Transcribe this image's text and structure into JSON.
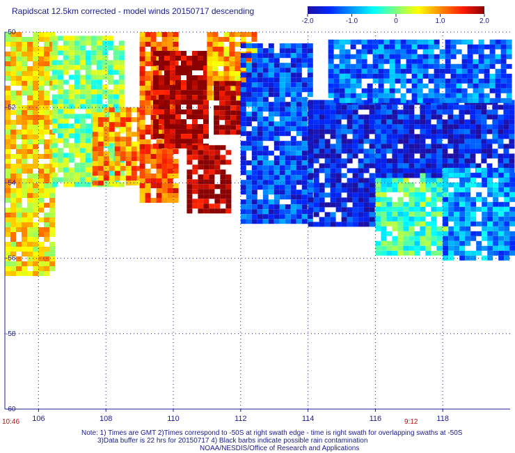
{
  "title": "Rapidscat 12.5km corrected - model winds 20150717 descending",
  "colorbar": {
    "ticks": [
      "-2.0",
      "-1.0",
      "0",
      "1.0",
      "2.0"
    ],
    "stops": [
      "#1e0fa0",
      "#0028ff",
      "#0096ff",
      "#00ffff",
      "#7dff7d",
      "#ffff00",
      "#ff8c00",
      "#ff1e00",
      "#8b0000"
    ],
    "range": [
      -2.0,
      2.0
    ]
  },
  "chart_data": {
    "type": "heatmap",
    "title": "Rapidscat 12.5km corrected - model winds 20150717 descending",
    "x_ticks": [
      106,
      108,
      110,
      112,
      114,
      116,
      118
    ],
    "y_ticks": [
      -50,
      -52,
      -54,
      -56,
      -58,
      -60
    ],
    "xlim": [
      105.0,
      120.0
    ],
    "ylim": [
      -60,
      -50
    ],
    "grid": true,
    "value_range": [
      -2.0,
      2.0
    ],
    "regions": [
      {
        "lon": [
          105.0,
          106.4
        ],
        "lat": [
          -56.4,
          -50.0
        ],
        "value": 0.6
      },
      {
        "lon": [
          106.4,
          108.4
        ],
        "lat": [
          -54.0,
          -50.1
        ],
        "value": 0.0
      },
      {
        "lon": [
          107.6,
          109.0
        ],
        "lat": [
          -54.0,
          -52.0
        ],
        "value": 1.0
      },
      {
        "lon": [
          109.0,
          110.0
        ],
        "lat": [
          -54.5,
          -50.0
        ],
        "value": 1.2
      },
      {
        "lon": [
          109.4,
          111.0
        ],
        "lat": [
          -53.0,
          -50.5
        ],
        "value": 2.0
      },
      {
        "lon": [
          110.4,
          111.6
        ],
        "lat": [
          -54.8,
          -53.0
        ],
        "value": 2.0
      },
      {
        "lon": [
          111.0,
          112.4
        ],
        "lat": [
          -51.8,
          -50.0
        ],
        "value": 0.9
      },
      {
        "lon": [
          111.2,
          112.0
        ],
        "lat": [
          -52.6,
          -51.3
        ],
        "value": 2.0
      },
      {
        "lon": [
          112.0,
          114.0
        ],
        "lat": [
          -55.0,
          -50.3
        ],
        "value": -1.4
      },
      {
        "lon": [
          114.0,
          116.0
        ],
        "lat": [
          -55.1,
          -51.8
        ],
        "value": -1.6
      },
      {
        "lon": [
          116.0,
          118.0
        ],
        "lat": [
          -55.8,
          -53.6
        ],
        "value": -0.2
      },
      {
        "lon": [
          116.0,
          120.0
        ],
        "lat": [
          -53.8,
          -51.8
        ],
        "value": -1.6
      },
      {
        "lon": [
          118.0,
          120.0
        ],
        "lat": [
          -56.0,
          -53.6
        ],
        "value": -1.0
      },
      {
        "lon": [
          114.6,
          120.0
        ],
        "lat": [
          -51.8,
          -50.2
        ],
        "value": -1.2
      }
    ]
  },
  "time_labels": {
    "left": "10:46",
    "right": "9:12"
  },
  "notes": [
    "Note: 1) Times are GMT 2)Times correspond to -50S at right swath edge - time is right swath for overlapping swaths at -50S",
    "3)Data buffer is 22 hrs for 20150717 4) Black barbs indicate possible rain contamination",
    "NOAA/NESDIS/Office of Research and Applications"
  ]
}
